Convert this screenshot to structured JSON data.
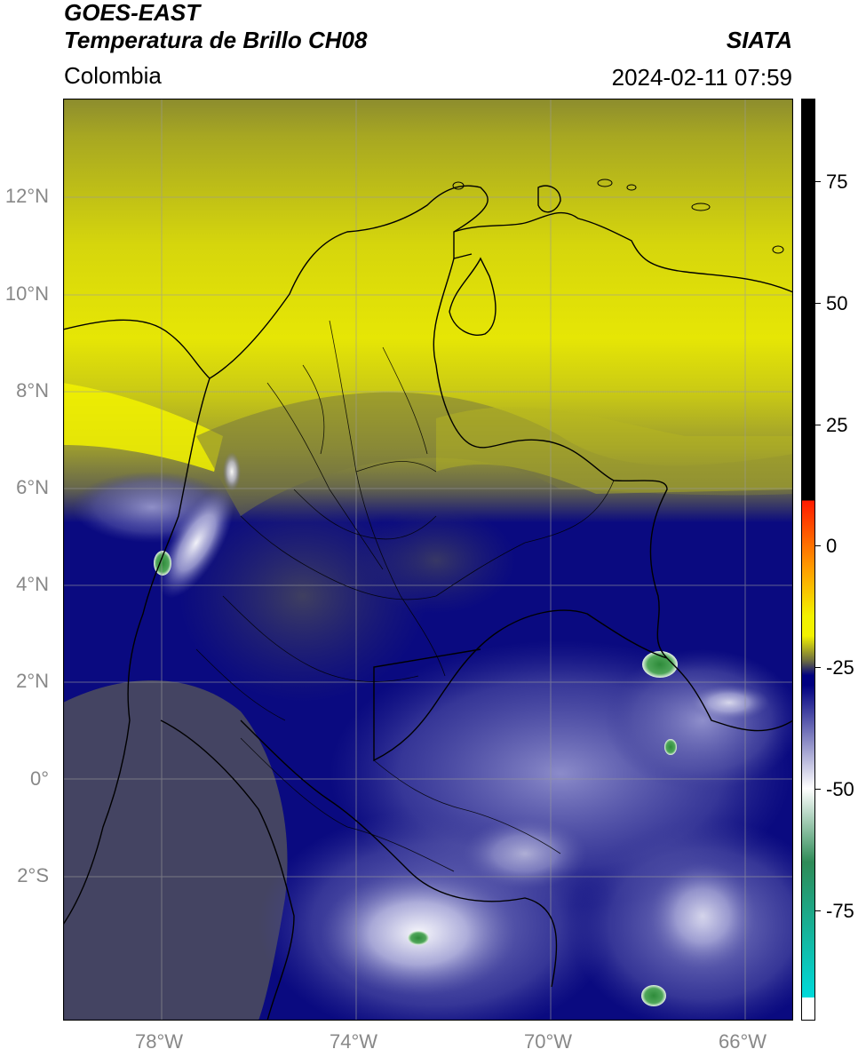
{
  "header": {
    "satellite": "GOES-EAST",
    "product": "Temperatura de Brillo CH08",
    "brand": "SIATA",
    "region": "Colombia",
    "timestamp": "2024-02-11 07:59"
  },
  "map": {
    "lat_ticks": [
      "12°N",
      "10°N",
      "8°N",
      "6°N",
      "4°N",
      "2°N",
      "0°",
      "2°S"
    ],
    "lon_ticks": [
      "78°W",
      "74°W",
      "70°W",
      "66°W"
    ],
    "lat_range": [
      -4.9,
      14.0
    ],
    "lon_range": [
      -80.0,
      -65.0
    ],
    "grid": true
  },
  "colorbar": {
    "ticks": [
      "75",
      "50",
      "25",
      "0",
      "-25",
      "-50",
      "-75"
    ],
    "range": [
      -97,
      90
    ],
    "colors": {
      "warm": "#000000",
      "red": "#ff1a00",
      "orange": "#ff9a00",
      "yellow": "#f2f200",
      "olive": "#6e6e40",
      "navy": "#000080",
      "white": "#ffffff",
      "green": "#2e8b57",
      "cyan": "#00d8d8"
    }
  }
}
